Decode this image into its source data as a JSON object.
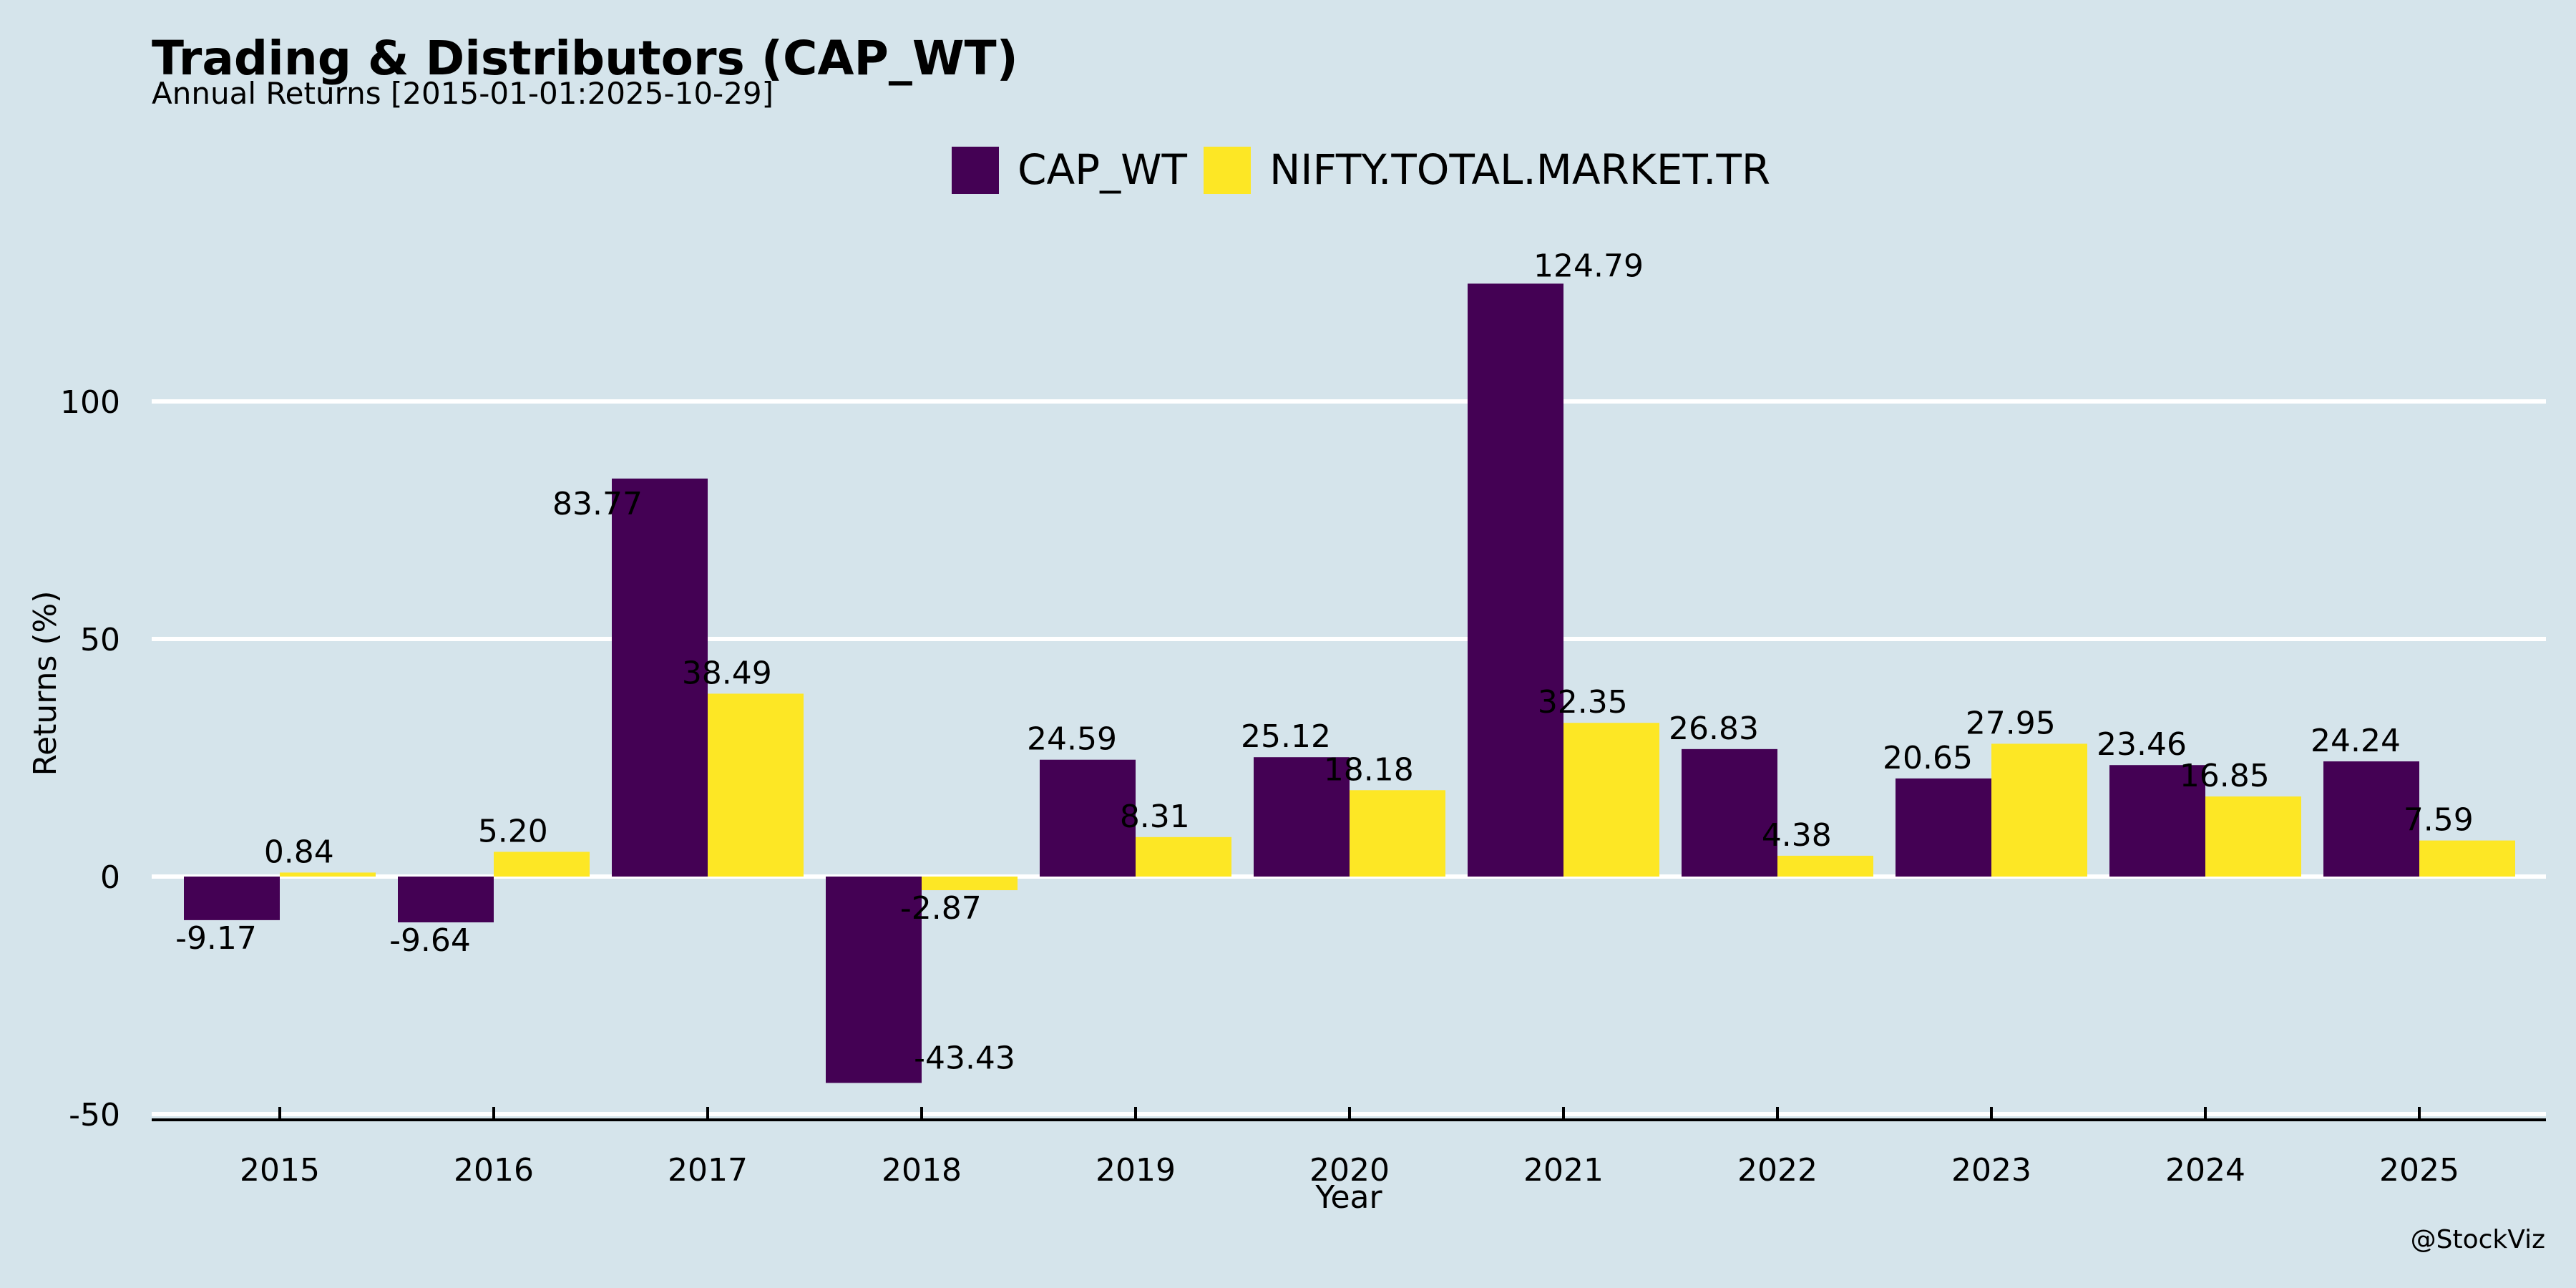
{
  "chart_data": {
    "type": "bar",
    "title": "Trading & Distributors (CAP_WT)",
    "subtitle": "Annual Returns [2015-01-01:2025-10-29]",
    "xlabel": "Year",
    "ylabel": "Returns (%)",
    "categories": [
      "2015",
      "2016",
      "2017",
      "2018",
      "2019",
      "2020",
      "2021",
      "2022",
      "2023",
      "2024",
      "2025"
    ],
    "series": [
      {
        "name": "CAP_WT",
        "color": "#440154",
        "values": [
          -9.17,
          -9.64,
          83.77,
          -43.43,
          24.59,
          25.12,
          124.79,
          26.83,
          20.65,
          23.46,
          24.24
        ],
        "labels": [
          "-9.17",
          "-9.64",
          "83.77",
          "-43.43",
          "24.59",
          "25.12",
          "124.79",
          "26.83",
          "20.65",
          "23.46",
          "24.24"
        ]
      },
      {
        "name": "NIFTY.TOTAL.MARKET.TR",
        "color": "#fde725",
        "values": [
          0.84,
          5.2,
          38.49,
          -2.87,
          8.31,
          18.18,
          32.35,
          4.38,
          27.95,
          16.85,
          7.59
        ],
        "labels": [
          "0.84",
          "5.20",
          "38.49",
          "-2.87",
          "8.31",
          "18.18",
          "32.35",
          "4.38",
          "27.95",
          "16.85",
          "7.59"
        ]
      }
    ],
    "yticks": [
      -50,
      0,
      50,
      100
    ],
    "ylim": [
      -52,
      135
    ],
    "grid": true,
    "legend_position": "top-center"
  },
  "credit": "@StockViz",
  "colors": {
    "background": "#d5e4eb",
    "grid": "#ffffff",
    "axis": "#000000"
  }
}
